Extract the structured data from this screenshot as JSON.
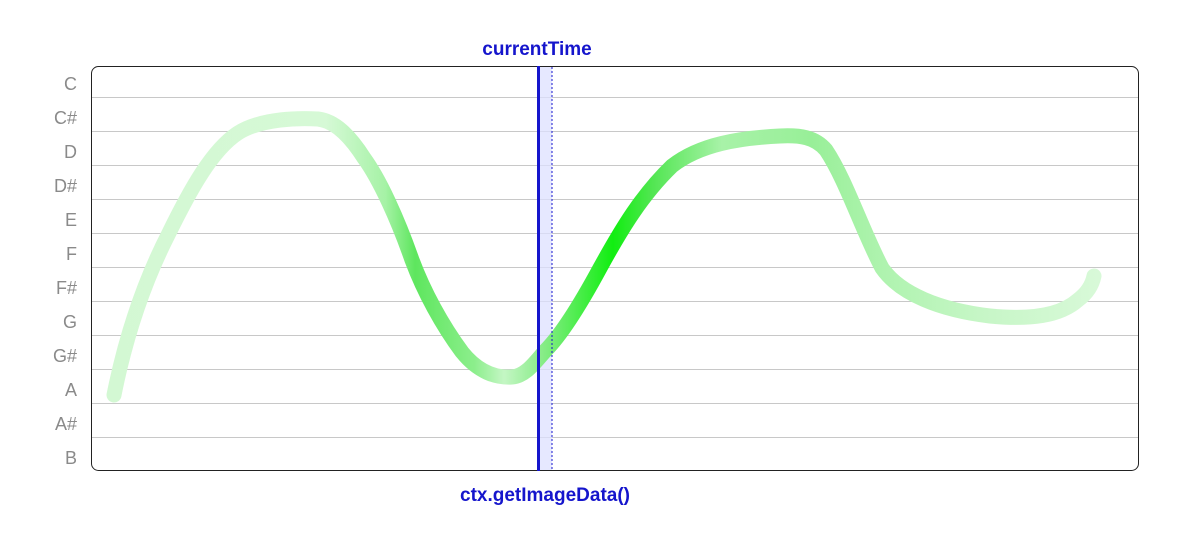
{
  "labels": {
    "top_marker": "currentTime",
    "bottom_marker": "ctx.getImageData()"
  },
  "notes": [
    "C",
    "C#",
    "D",
    "D#",
    "E",
    "F",
    "F#",
    "G",
    "G#",
    "A",
    "A#",
    "B"
  ],
  "colors": {
    "grid_line": "#c8c8c8",
    "frame": "#222222",
    "note_label": "#8a8a8a",
    "marker": "#1515cc",
    "marker_band": "#dde0ff",
    "curve_bright": "#11ee11",
    "curve_pale": "#d2f8d2"
  }
}
